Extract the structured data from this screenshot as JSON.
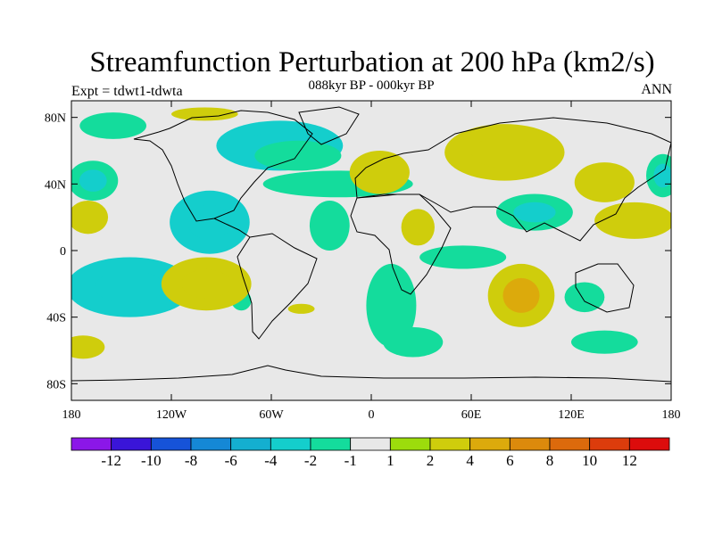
{
  "title": "Streamfunction Perturbation at 200 hPa (km2/s)",
  "subtitle": "088kyr BP - 000kyr BP",
  "left_label": "Expt = tdwt1-tdwta",
  "right_label": "ANN",
  "lat_ticks": [
    "80N",
    "40N",
    "0",
    "40S",
    "80S"
  ],
  "lon_ticks": [
    "180",
    "120W",
    "60W",
    "0",
    "60E",
    "120E",
    "180"
  ],
  "legend": {
    "colors": [
      "#8b17e8",
      "#3a15d8",
      "#1653d8",
      "#1588d6",
      "#14afd0",
      "#14cecc",
      "#14dc9c",
      "#e8e8e8",
      "#9cdc0c",
      "#cfcd0c",
      "#dcaa0c",
      "#dc8a0c",
      "#dc6a0c",
      "#dc3c0c",
      "#dc0c0c"
    ],
    "labels": [
      "-12",
      "-10",
      "-8",
      "-6",
      "-4",
      "-2",
      "-1",
      "1",
      "2",
      "4",
      "6",
      "8",
      "10",
      "12"
    ]
  },
  "chart_data": {
    "type": "heatmap",
    "title": "Streamfunction Perturbation at 200 hPa (km2/s)",
    "subtitle": "088kyr BP - 000kyr BP",
    "experiment": "Expt = tdwt1-tdwta",
    "period": "ANN",
    "units": "km2/s",
    "x_range": [
      -180,
      180
    ],
    "y_range": [
      -90,
      90
    ],
    "contour_levels": [
      -12,
      -10,
      -8,
      -6,
      -4,
      -2,
      -1,
      1,
      2,
      4,
      6,
      8,
      10,
      12
    ],
    "anomaly_regions": [
      {
        "lon": -145,
        "lat": -22,
        "rx": 38,
        "ry": 18,
        "value": -3,
        "core": -4
      },
      {
        "lon": -97,
        "lat": 17,
        "rx": 24,
        "ry": 19,
        "value": -3,
        "core": -4
      },
      {
        "lon": -55,
        "lat": 63,
        "rx": 38,
        "ry": 15,
        "value": -3,
        "core": -4
      },
      {
        "lon": -44,
        "lat": 57,
        "rx": 26,
        "ry": 9,
        "value": -2
      },
      {
        "lon": -20,
        "lat": 40,
        "rx": 45,
        "ry": 8,
        "value": -1.5
      },
      {
        "lon": -25,
        "lat": 15,
        "rx": 12,
        "ry": 15,
        "value": -1.5
      },
      {
        "lon": -155,
        "lat": 75,
        "rx": 20,
        "ry": 8,
        "value": -1.5
      },
      {
        "lon": -167,
        "lat": 42,
        "rx": 15,
        "ry": 12,
        "value": -1.5,
        "core": -2.5
      },
      {
        "lon": 12,
        "lat": -33,
        "rx": 15,
        "ry": 25,
        "value": -1.5
      },
      {
        "lon": 25,
        "lat": -55,
        "rx": 18,
        "ry": 9,
        "value": -1.5
      },
      {
        "lon": 55,
        "lat": -4,
        "rx": 26,
        "ry": 7,
        "value": -1.5
      },
      {
        "lon": 98,
        "lat": 23,
        "rx": 23,
        "ry": 11,
        "value": -2,
        "core": -3
      },
      {
        "lon": 175,
        "lat": 45,
        "rx": 10,
        "ry": 13,
        "value": -2,
        "core": -3
      },
      {
        "lon": 140,
        "lat": -55,
        "rx": 20,
        "ry": 7,
        "value": -1.5
      },
      {
        "lon": 128,
        "lat": -28,
        "rx": 12,
        "ry": 9,
        "value": -1.5
      },
      {
        "lon": -78,
        "lat": -30,
        "rx": 6,
        "ry": 6,
        "value": -1.5
      },
      {
        "lon": -99,
        "lat": -20,
        "rx": 27,
        "ry": 16,
        "value": 2.5,
        "core": 3
      },
      {
        "lon": 80,
        "lat": 59,
        "rx": 36,
        "ry": 17,
        "value": 2,
        "core": 3
      },
      {
        "lon": 5,
        "lat": 47,
        "rx": 18,
        "ry": 13,
        "value": 2
      },
      {
        "lon": 28,
        "lat": 14,
        "rx": 10,
        "ry": 11,
        "value": 2
      },
      {
        "lon": 90,
        "lat": -27,
        "rx": 20,
        "ry": 19,
        "value": 2,
        "core": 4
      },
      {
        "lon": 158,
        "lat": 18,
        "rx": 24,
        "ry": 11,
        "value": 2,
        "core": 3
      },
      {
        "lon": -170,
        "lat": 20,
        "rx": 12,
        "ry": 10,
        "value": 2,
        "core": 3
      },
      {
        "lon": 140,
        "lat": 41,
        "rx": 18,
        "ry": 12,
        "value": 2
      },
      {
        "lon": -173,
        "lat": -58,
        "rx": 13,
        "ry": 7,
        "value": 2
      },
      {
        "lon": -42,
        "lat": -35,
        "rx": 8,
        "ry": 3,
        "value": 2
      },
      {
        "lon": -100,
        "lat": 82,
        "rx": 20,
        "ry": 4,
        "value": 2
      }
    ]
  }
}
